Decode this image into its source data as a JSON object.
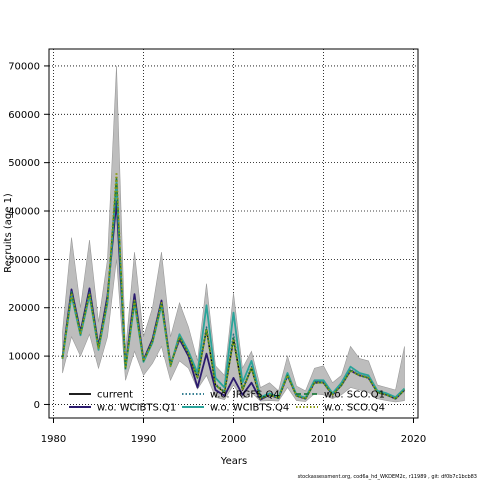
{
  "footer": "stockassessment.org, cod6a_hd_WKDEM2c, r11989 , git: df0b7c1bcb83",
  "chart_data": {
    "type": "line",
    "xlabel": "Years",
    "ylabel": "Recruits (age 1)",
    "xlim": [
      1979.5,
      2020.5
    ],
    "ylim": [
      -2800,
      73500
    ],
    "x_ticks": [
      1980,
      1990,
      2000,
      2010,
      2020
    ],
    "y_ticks": [
      0,
      10000,
      20000,
      30000,
      40000,
      50000,
      60000,
      70000
    ],
    "x_tick_labels": [
      "1980",
      "1990",
      "2000",
      "2010",
      "2020"
    ],
    "y_tick_labels": [
      "0",
      "10000",
      "20000",
      "30000",
      "40000",
      "50000",
      "60000",
      "70000"
    ],
    "grid": true,
    "legend_position": "bottom-left",
    "x": [
      1981,
      1982,
      1983,
      1984,
      1985,
      1986,
      1987,
      1988,
      1989,
      1990,
      1991,
      1992,
      1993,
      1994,
      1995,
      1996,
      1997,
      1998,
      1999,
      2000,
      2001,
      2002,
      2003,
      2004,
      2005,
      2006,
      2007,
      2008,
      2009,
      2010,
      2011,
      2012,
      2013,
      2014,
      2015,
      2016,
      2017,
      2018,
      2019
    ],
    "ci_band": {
      "lower": [
        6500,
        14000,
        10000,
        14500,
        7500,
        14000,
        30000,
        5000,
        11000,
        6000,
        8500,
        12000,
        5000,
        9000,
        7500,
        3200,
        6000,
        1500,
        1000,
        4000,
        1200,
        2500,
        700,
        800,
        700,
        3500,
        800,
        600,
        2200,
        2000,
        1200,
        2000,
        3500,
        3000,
        2500,
        1200,
        800,
        500,
        800
      ],
      "upper": [
        15000,
        34500,
        20000,
        34000,
        17000,
        30000,
        70000,
        11000,
        31500,
        14000,
        20000,
        31500,
        14000,
        21000,
        16000,
        9000,
        25000,
        8000,
        6000,
        23000,
        7500,
        11000,
        3500,
        4500,
        2800,
        10000,
        3800,
        2800,
        7500,
        8000,
        4500,
        6000,
        12000,
        9500,
        9000,
        4000,
        3500,
        3000,
        12000
      ]
    },
    "series": [
      {
        "name": "current",
        "color": "#000000",
        "dash": "solid",
        "width": 1.5,
        "values": [
          9500,
          23000,
          14500,
          23000,
          11500,
          21500,
          46500,
          7500,
          21500,
          9000,
          13000,
          21000,
          8000,
          14000,
          10500,
          5500,
          15500,
          4000,
          2500,
          13500,
          3000,
          7500,
          1200,
          2000,
          1300,
          6000,
          1800,
          1200,
          4500,
          4500,
          2000,
          4000,
          7000,
          6000,
          5500,
          2500,
          2000,
          1200,
          3000
        ]
      },
      {
        "name": "w.o. WCIBTS.Q1",
        "color": "#2b1a6e",
        "dash": "solid",
        "width": 1.8,
        "values": [
          9800,
          23800,
          15000,
          24000,
          12000,
          22500,
          42000,
          7800,
          22800,
          9200,
          13500,
          21500,
          8300,
          13500,
          10000,
          3500,
          10500,
          3000,
          1800,
          5500,
          2000,
          4500,
          1000,
          2000,
          1300,
          6000,
          1800,
          1200,
          4700,
          4500,
          2000,
          4000,
          7000,
          6000,
          5500,
          2500,
          2000,
          1200,
          3000
        ]
      },
      {
        "name": "w.o. IRGFS.Q4",
        "color": "#1c6e84",
        "dash": "dotted",
        "width": 1.5,
        "values": [
          9600,
          23300,
          14700,
          23200,
          11700,
          21800,
          45500,
          7600,
          21700,
          9000,
          13100,
          21100,
          8100,
          14100,
          10600,
          5600,
          16000,
          4200,
          2700,
          14500,
          3200,
          7800,
          1300,
          2100,
          1400,
          6200,
          1900,
          1300,
          4700,
          4700,
          2100,
          4100,
          7300,
          6100,
          5600,
          2600,
          2100,
          1300,
          3100
        ]
      },
      {
        "name": "w.o. WCIBTS.Q4",
        "color": "#2aa49a",
        "dash": "solid",
        "width": 1.8,
        "values": [
          9400,
          22500,
          14300,
          22500,
          11300,
          21000,
          46000,
          7400,
          21000,
          8800,
          12800,
          20500,
          7900,
          14500,
          11000,
          6500,
          20500,
          5500,
          3500,
          19000,
          4500,
          9000,
          1500,
          2300,
          1500,
          6500,
          2000,
          1400,
          5000,
          5000,
          2300,
          4500,
          7800,
          6500,
          6000,
          2800,
          2300,
          1500,
          3300
        ]
      },
      {
        "name": "w.o. SCO.Q1",
        "color": "#1e7b3c",
        "dash": "dashed",
        "width": 1.5,
        "values": [
          9500,
          23100,
          14600,
          23100,
          11600,
          21600,
          46800,
          7500,
          21600,
          9000,
          13000,
          21000,
          8000,
          14000,
          10500,
          5500,
          15700,
          4000,
          2500,
          13700,
          3000,
          7600,
          1200,
          2000,
          1300,
          6000,
          1800,
          1200,
          4500,
          4500,
          2000,
          4000,
          7000,
          6000,
          5500,
          2500,
          2000,
          1200,
          3000
        ]
      },
      {
        "name": "w.o. SCO.Q4",
        "color": "#8a9a10",
        "dash": "dotted",
        "width": 1.8,
        "values": [
          9500,
          23000,
          14500,
          23000,
          11500,
          21500,
          48000,
          7500,
          21500,
          9000,
          13000,
          21000,
          8000,
          14000,
          10500,
          5500,
          15500,
          4000,
          2500,
          13500,
          3000,
          7500,
          1200,
          2000,
          1300,
          6000,
          1800,
          1200,
          4500,
          4500,
          2000,
          4000,
          7000,
          6000,
          5500,
          2500,
          2000,
          1200,
          3000
        ]
      }
    ]
  }
}
